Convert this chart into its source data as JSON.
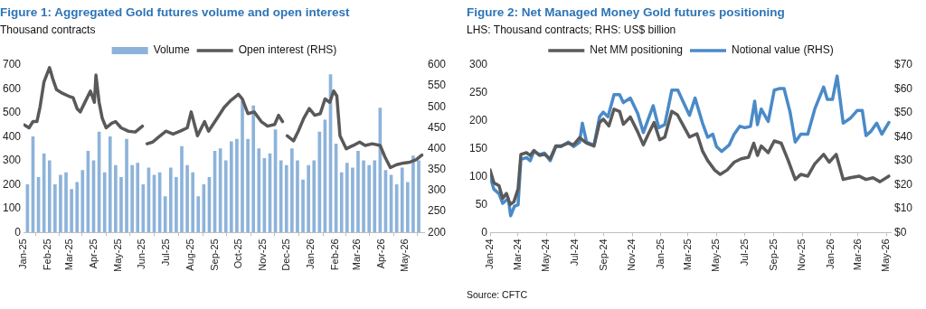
{
  "chart_data": [
    {
      "type": "bar",
      "title": "Figure 1: Aggregated Gold futures volume and open interest",
      "subtitle": "Thousand contracts",
      "legend": "top",
      "xlim": [
        "2025-01-01",
        "2026-05-26"
      ],
      "xticks": [
        {
          "value": "2025-01-01",
          "label": "Jan-25"
        },
        {
          "value": "2025-02-01",
          "label": "Feb-25"
        },
        {
          "value": "2025-03-01",
          "label": "Mar-25"
        },
        {
          "value": "2025-04-01",
          "label": "Apr-25"
        },
        {
          "value": "2025-05-01",
          "label": "May-25"
        },
        {
          "value": "2025-06-01",
          "label": "Jun-25"
        },
        {
          "value": "2025-07-01",
          "label": "Jul-25"
        },
        {
          "value": "2025-08-01",
          "label": "Aug-25"
        },
        {
          "value": "2025-09-01",
          "label": "Sep-25"
        },
        {
          "value": "2025-10-01",
          "label": "Oct-25"
        },
        {
          "value": "2025-11-01",
          "label": "Nov-25"
        },
        {
          "value": "2025-12-01",
          "label": "Dec-25"
        },
        {
          "value": "2026-01-01",
          "label": "Jan-26"
        },
        {
          "value": "2026-02-01",
          "label": "Feb-26"
        },
        {
          "value": "2026-03-01",
          "label": "Mar-26"
        },
        {
          "value": "2026-04-01",
          "label": "Apr-26"
        },
        {
          "value": "2026-05-01",
          "label": "May-26"
        }
      ],
      "ylim": [
        0,
        700
      ],
      "yticks": [
        0,
        100,
        200,
        300,
        400,
        500,
        600,
        700
      ],
      "y2lim": [
        200,
        600
      ],
      "y2ticks": [
        200,
        250,
        300,
        350,
        400,
        450,
        500,
        550,
        600
      ],
      "marker": "none",
      "series": [
        {
          "name": "Volume",
          "type": "bar",
          "color": "#8db3da",
          "x": [
            "2025-01-06",
            "2025-01-13",
            "2025-01-20",
            "2025-01-27",
            "2025-02-03",
            "2025-02-10",
            "2025-02-17",
            "2025-02-24",
            "2025-03-03",
            "2025-03-10",
            "2025-03-17",
            "2025-03-24",
            "2025-03-31",
            "2025-04-07",
            "2025-04-14",
            "2025-04-21",
            "2025-04-28",
            "2025-05-05",
            "2025-05-12",
            "2025-05-19",
            "2025-05-26",
            "2025-06-02",
            "2025-06-09",
            "2025-06-16",
            "2025-06-23",
            "2025-06-30",
            "2025-07-07",
            "2025-07-14",
            "2025-07-21",
            "2025-07-28",
            "2025-08-04",
            "2025-08-11",
            "2025-08-18",
            "2025-08-25",
            "2025-09-01",
            "2025-09-08",
            "2025-09-15",
            "2025-09-22",
            "2025-09-29",
            "2025-10-06",
            "2025-10-13",
            "2025-10-20",
            "2025-10-27",
            "2025-11-03",
            "2025-11-10",
            "2025-11-17",
            "2025-11-24",
            "2025-12-01",
            "2025-12-08",
            "2025-12-15",
            "2025-12-22",
            "2025-12-29",
            "2026-01-05",
            "2026-01-12",
            "2026-01-19",
            "2026-01-26",
            "2026-02-02",
            "2026-02-09",
            "2026-02-16",
            "2026-02-23",
            "2026-03-02",
            "2026-03-09",
            "2026-03-16",
            "2026-03-23",
            "2026-03-30",
            "2026-04-06",
            "2026-04-13",
            "2026-04-20",
            "2026-04-27",
            "2026-05-04",
            "2026-05-11",
            "2026-05-18"
          ],
          "values": [
            200,
            400,
            230,
            330,
            300,
            200,
            240,
            250,
            180,
            210,
            260,
            340,
            300,
            420,
            250,
            400,
            280,
            230,
            390,
            280,
            290,
            200,
            270,
            240,
            250,
            150,
            270,
            230,
            360,
            280,
            250,
            150,
            200,
            230,
            340,
            350,
            300,
            380,
            390,
            550,
            390,
            530,
            350,
            310,
            330,
            430,
            300,
            280,
            350,
            300,
            220,
            280,
            300,
            420,
            470,
            660,
            370,
            250,
            290,
            270,
            340,
            300,
            280,
            300,
            520,
            260,
            240,
            200,
            270,
            210,
            320,
            300
          ]
        },
        {
          "name": "Open interest (RHS)",
          "type": "line",
          "axis": "y2",
          "color": "#595959",
          "x": [
            "2025-01-02",
            "2025-01-08",
            "2025-01-13",
            "2025-01-18",
            "2025-01-22",
            "2025-01-27",
            "2025-02-03",
            "2025-02-07",
            "2025-02-12",
            "2025-02-18",
            "2025-02-27",
            "2025-03-05",
            "2025-03-10",
            "2025-03-14",
            "2025-03-21",
            "2025-03-27",
            "2025-04-01",
            "2025-04-03",
            "2025-04-07",
            "2025-04-11",
            "2025-04-16",
            "2025-04-23",
            "2025-04-28",
            "2025-05-05",
            "2025-05-14",
            "2025-05-23",
            "2025-06-01",
            "2025-06-04",
            "2025-06-07",
            "2025-06-14",
            "2025-06-21",
            "2025-07-01",
            "2025-07-10",
            "2025-07-19",
            "2025-07-28",
            "2025-08-02",
            "2025-08-10",
            "2025-08-19",
            "2025-08-24",
            "2025-09-04",
            "2025-09-13",
            "2025-09-21",
            "2025-10-01",
            "2025-10-06",
            "2025-10-13",
            "2025-10-21",
            "2025-10-30",
            "2025-11-07",
            "2025-11-16",
            "2025-11-21",
            "2025-11-26",
            "2025-11-29",
            "2025-12-02",
            "2025-12-10",
            "2025-12-16",
            "2025-12-23",
            "2025-12-30",
            "2026-01-06",
            "2026-01-13",
            "2026-01-19",
            "2026-01-25",
            "2026-01-30",
            "2026-02-03",
            "2026-02-07",
            "2026-02-15",
            "2026-02-24",
            "2026-03-04",
            "2026-03-11",
            "2026-03-20",
            "2026-03-30",
            "2026-04-05",
            "2026-04-12",
            "2026-04-20",
            "2026-04-29",
            "2026-05-07",
            "2026-05-15",
            "2026-05-22"
          ],
          "values": [
            457,
            450,
            465,
            465,
            500,
            560,
            594,
            568,
            541,
            534,
            526,
            522,
            496,
            488,
            515,
            538,
            511,
            576,
            511,
            473,
            450,
            461,
            465,
            450,
            442,
            440,
            454,
            null,
            412,
            416,
            427,
            442,
            435,
            442,
            450,
            488,
            431,
            465,
            442,
            473,
            499,
            515,
            530,
            519,
            484,
            488,
            465,
            454,
            458,
            480,
            465,
            null,
            431,
            419,
            442,
            473,
            496,
            480,
            484,
            519,
            511,
            538,
            526,
            431,
            400,
            408,
            416,
            408,
            412,
            408,
            381,
            355,
            362,
            366,
            368,
            374,
            385
          ]
        }
      ]
    },
    {
      "type": "line",
      "title": "Figure 2: Net Managed Money Gold futures positioning",
      "subtitle": "LHS: Thousand contracts; RHS: US$ billion",
      "legend": "top",
      "annotations": [
        "Source: CFTC"
      ],
      "xlim": [
        "2024-01-01",
        "2026-05-12"
      ],
      "xticks": [
        {
          "value": "2024-01-01",
          "label": "Jan-24"
        },
        {
          "value": "2024-03-01",
          "label": "Mar-24"
        },
        {
          "value": "2024-05-01",
          "label": "May-24"
        },
        {
          "value": "2024-07-01",
          "label": "Jul-24"
        },
        {
          "value": "2024-09-01",
          "label": "Sep-24"
        },
        {
          "value": "2024-11-01",
          "label": "Nov-24"
        },
        {
          "value": "2025-01-01",
          "label": "Jan-25"
        },
        {
          "value": "2025-03-01",
          "label": "Mar-25"
        },
        {
          "value": "2025-05-01",
          "label": "May-25"
        },
        {
          "value": "2025-07-01",
          "label": "Jul-25"
        },
        {
          "value": "2025-09-01",
          "label": "Sep-25"
        },
        {
          "value": "2025-11-01",
          "label": "Nov-25"
        },
        {
          "value": "2026-01-01",
          "label": "Jan-26"
        },
        {
          "value": "2026-03-01",
          "label": "Mar-26"
        },
        {
          "value": "2026-05-01",
          "label": "May-26"
        }
      ],
      "ylim": [
        0,
        300
      ],
      "yticks": [
        0,
        50,
        100,
        150,
        200,
        250,
        300
      ],
      "y2lim": [
        0,
        70
      ],
      "y2ticks": [
        {
          "value": 0,
          "label": "$0"
        },
        {
          "value": 10,
          "label": "$10"
        },
        {
          "value": 20,
          "label": "$20"
        },
        {
          "value": 30,
          "label": "$30"
        },
        {
          "value": 40,
          "label": "$40"
        },
        {
          "value": 50,
          "label": "$50"
        },
        {
          "value": 60,
          "label": "$60"
        },
        {
          "value": 70,
          "label": "$70"
        }
      ],
      "marker": "none",
      "series": [
        {
          "name": "Net MM positioning",
          "color": "#5a5a5a",
          "x": [
            "2024-01-01",
            "2024-01-09",
            "2024-01-20",
            "2024-01-28",
            "2024-02-05",
            "2024-02-13",
            "2024-02-21",
            "2024-03-01",
            "2024-03-07",
            "2024-03-19",
            "2024-03-27",
            "2024-04-04",
            "2024-04-16",
            "2024-04-27",
            "2024-05-09",
            "2024-05-21",
            "2024-06-01",
            "2024-06-17",
            "2024-06-28",
            "2024-07-11",
            "2024-07-26",
            "2024-08-11",
            "2024-08-23",
            "2024-08-31",
            "2024-09-12",
            "2024-09-23",
            "2024-10-05",
            "2024-10-13",
            "2024-10-28",
            "2024-11-13",
            "2024-11-25",
            "2024-12-06",
            "2024-12-18",
            "2024-12-30",
            "2025-01-10",
            "2025-01-25",
            "2025-02-06",
            "2025-02-21",
            "2025-03-04",
            "2025-03-20",
            "2025-04-01",
            "2025-04-12",
            "2025-04-27",
            "2025-05-09",
            "2025-05-24",
            "2025-06-08",
            "2025-06-23",
            "2025-07-09",
            "2025-07-20",
            "2025-07-28",
            "2025-08-05",
            "2025-08-20",
            "2025-09-02",
            "2025-09-17",
            "2025-10-02",
            "2025-10-17",
            "2025-10-29",
            "2025-11-13",
            "2025-11-28",
            "2025-12-17",
            "2025-12-29",
            "2026-01-13",
            "2026-01-28",
            "2026-02-12",
            "2026-03-03",
            "2026-03-18",
            "2026-04-02",
            "2026-04-17",
            "2026-05-06"
          ],
          "values": [
            112,
            89,
            84,
            61,
            70,
            50,
            55,
            78,
            140,
            143,
            138,
            147,
            138,
            140,
            132,
            155,
            155,
            160,
            157,
            170,
            160,
            155,
            197,
            203,
            191,
            221,
            217,
            194,
            207,
            180,
            157,
            177,
            197,
            166,
            171,
            217,
            211,
            188,
            171,
            177,
            146,
            129,
            112,
            104,
            112,
            126,
            132,
            135,
            160,
            138,
            155,
            143,
            164,
            160,
            129,
            95,
            104,
            101,
            123,
            140,
            126,
            140,
            95,
            98,
            101,
            95,
            98,
            91,
            101
          ]
        },
        {
          "name": "Notional value (RHS)",
          "axis": "y2",
          "color": "#4a8ac8",
          "x": [
            "2024-01-01",
            "2024-01-09",
            "2024-01-20",
            "2024-01-28",
            "2024-02-09",
            "2024-02-14",
            "2024-02-22",
            "2024-03-01",
            "2024-03-07",
            "2024-03-19",
            "2024-03-27",
            "2024-04-04",
            "2024-04-16",
            "2024-04-27",
            "2024-05-09",
            "2024-05-21",
            "2024-06-01",
            "2024-06-17",
            "2024-06-28",
            "2024-07-11",
            "2024-07-17",
            "2024-07-26",
            "2024-08-11",
            "2024-08-23",
            "2024-08-31",
            "2024-09-10",
            "2024-09-23",
            "2024-10-05",
            "2024-10-13",
            "2024-10-28",
            "2024-11-13",
            "2024-11-25",
            "2024-12-06",
            "2024-12-16",
            "2024-12-28",
            "2025-01-10",
            "2025-01-25",
            "2025-02-07",
            "2025-02-21",
            "2025-03-04",
            "2025-03-16",
            "2025-03-20",
            "2025-04-01",
            "2025-04-12",
            "2025-04-23",
            "2025-05-01",
            "2025-05-12",
            "2025-05-28",
            "2025-06-08",
            "2025-06-20",
            "2025-07-01",
            "2025-07-13",
            "2025-07-22",
            "2025-07-28",
            "2025-08-05",
            "2025-08-20",
            "2025-09-02",
            "2025-09-14",
            "2025-09-23",
            "2025-10-06",
            "2025-10-17",
            "2025-10-29",
            "2025-11-13",
            "2025-11-28",
            "2025-12-17",
            "2025-12-25",
            "2026-01-05",
            "2026-01-15",
            "2026-01-28",
            "2026-02-12",
            "2026-02-27",
            "2026-03-10",
            "2026-03-18",
            "2026-03-29",
            "2026-04-10",
            "2026-04-21",
            "2026-05-06"
          ],
          "values": [
            23.4,
            18.1,
            16.2,
            12.2,
            14.2,
            7.0,
            10.9,
            11.6,
            30.6,
            31.3,
            30.0,
            33.9,
            32.6,
            33.2,
            30.0,
            35.9,
            35.9,
            37.8,
            35.9,
            37.8,
            45.7,
            37.8,
            36.5,
            48.4,
            50.3,
            48.4,
            57.6,
            57.6,
            54.3,
            56.2,
            49.7,
            41.8,
            47.7,
            53.0,
            43.8,
            45.1,
            59.5,
            59.5,
            53.6,
            49.0,
            56.2,
            53.6,
            45.7,
            39.8,
            41.1,
            35.9,
            33.9,
            36.5,
            41.1,
            44.4,
            43.8,
            44.4,
            54.9,
            45.1,
            51.6,
            46.4,
            59.5,
            60.2,
            60.2,
            50.3,
            37.8,
            41.1,
            41.1,
            51.6,
            60.8,
            55.6,
            55.6,
            65.4,
            45.7,
            47.7,
            51.0,
            51.0,
            40.5,
            42.4,
            45.7,
            41.1,
            46.0
          ]
        }
      ]
    }
  ]
}
